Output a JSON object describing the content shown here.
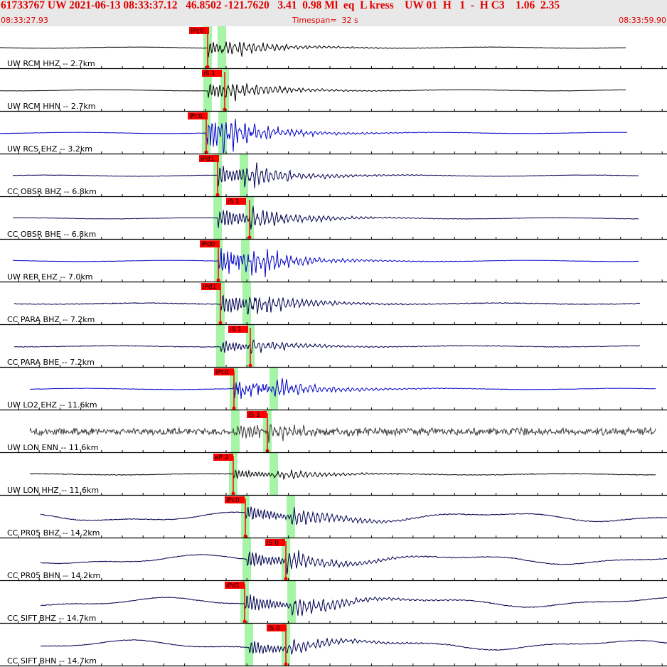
{
  "header": {
    "title": "61733767 UW 2021-06-13 08:33:37.12   46.8502 -121.7620   3.41  0.98 Ml  eq  L kress    UW 01  H   1  -  H C3    1.06  2.35",
    "time_start": "08:33:27.93",
    "timespan": "Timespan=  32 s",
    "time_end": "08:33:59.90"
  },
  "colors": {
    "header_text": "#e00000",
    "header_bg": "#e8e8e8",
    "pick_box": "#ff0000",
    "window": "#a6f5a6",
    "black_trace": "#000000",
    "blue_trace": "#0000c8",
    "navy_trace": "#000050",
    "gray_trace": "#404040"
  },
  "traces": [
    {
      "label": "UW RCM HHZ -- 2.7km",
      "pick_label": "iPc0",
      "color": "black"
    },
    {
      "label": "UW RCM HHN -- 2.7km",
      "pick_label": "iS 1",
      "color": "black"
    },
    {
      "label": "UW RCS EHZ -- 3.2km",
      "pick_label": "iPc0",
      "color": "blue"
    },
    {
      "label": "CC OBSR BHZ -- 6.8km",
      "pick_label": "iPd1",
      "color": "navy"
    },
    {
      "label": "CC OBSR BHE -- 6.8km",
      "pick_label": "iS 1",
      "color": "navy"
    },
    {
      "label": "UW RER EHZ -- 7.0km",
      "pick_label": "iPd0",
      "color": "blue"
    },
    {
      "label": "CC PARA BHZ -- 7.2km",
      "pick_label": "iPd1",
      "color": "navy"
    },
    {
      "label": "CC PARA BHE -- 7.2km",
      "pick_label": "iS 1",
      "color": "navy"
    },
    {
      "label": "UW LO2 EHZ -- 11.6km",
      "pick_label": "iPc0",
      "color": "blue"
    },
    {
      "label": "UW LON ENN -- 11.6km",
      "pick_label": "iS 1",
      "color": "gray"
    },
    {
      "label": "UW LON HHZ -- 11.6km",
      "pick_label": "eP 2",
      "color": "black"
    },
    {
      "label": "CC PR05 BHZ -- 14.2km",
      "pick_label": "iPc0",
      "color": "navy"
    },
    {
      "label": "CC PR05 BHN -- 14.2km",
      "pick_label": "iS 0",
      "color": "navy"
    },
    {
      "label": "CC SIFT BHZ -- 14.7km",
      "pick_label": "iPd1",
      "color": "navy"
    },
    {
      "label": "CC SIFT BHN -- 14.7km",
      "pick_label": "iS 0",
      "color": "navy"
    }
  ]
}
